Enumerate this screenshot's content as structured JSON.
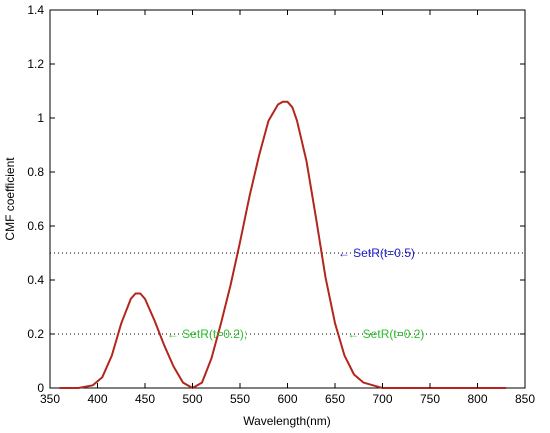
{
  "chart_data": {
    "type": "line",
    "title": "",
    "xlabel": "Wavelength(nm)",
    "ylabel": "CMF coefficient",
    "xlim": [
      350,
      850
    ],
    "ylim": [
      0,
      1.4
    ],
    "xticks": [
      350,
      400,
      450,
      500,
      550,
      600,
      650,
      700,
      750,
      800,
      850
    ],
    "yticks": [
      0,
      0.2,
      0.4,
      0.6,
      0.8,
      1,
      1.2,
      1.4
    ],
    "xtick_labels": [
      "350",
      "400",
      "450",
      "500",
      "550",
      "600",
      "650",
      "700",
      "750",
      "800",
      "850"
    ],
    "ytick_labels": [
      "0",
      "0.2",
      "0.4",
      "0.6",
      "0.8",
      "1",
      "1.2",
      "1.4"
    ],
    "grid": false,
    "series": [
      {
        "color": "#b3261e",
        "x": [
          360,
          380,
          395,
          405,
          415,
          425,
          435,
          440,
          445,
          450,
          460,
          470,
          480,
          490,
          500,
          510,
          520,
          530,
          540,
          550,
          560,
          570,
          580,
          590,
          595,
          600,
          605,
          610,
          620,
          630,
          640,
          650,
          660,
          670,
          680,
          690,
          700,
          720,
          750,
          800,
          830
        ],
        "y": [
          0.0,
          0.0,
          0.01,
          0.04,
          0.12,
          0.24,
          0.33,
          0.35,
          0.35,
          0.33,
          0.25,
          0.16,
          0.08,
          0.02,
          0.0,
          0.02,
          0.11,
          0.24,
          0.38,
          0.54,
          0.71,
          0.86,
          0.99,
          1.05,
          1.06,
          1.06,
          1.04,
          0.99,
          0.84,
          0.63,
          0.41,
          0.24,
          0.12,
          0.05,
          0.02,
          0.01,
          0.0,
          0.0,
          0.0,
          0.0,
          0.0
        ]
      }
    ],
    "threshold_lines": [
      {
        "y": 0.5,
        "style": "dotted"
      },
      {
        "y": 0.2,
        "style": "dotted"
      }
    ],
    "annotations": [
      {
        "text": "SetR(t=0.5)",
        "arrow": "←",
        "x": 653,
        "y": 0.5,
        "color": "#1a1ad0"
      },
      {
        "text": "SetR(t=0.2);",
        "arrow": "←",
        "x": 473,
        "y": 0.2,
        "color": "#2fbf2f"
      },
      {
        "text": "SetR(t=0.2)",
        "arrow": "←",
        "x": 663,
        "y": 0.2,
        "color": "#2fbf2f"
      }
    ]
  }
}
